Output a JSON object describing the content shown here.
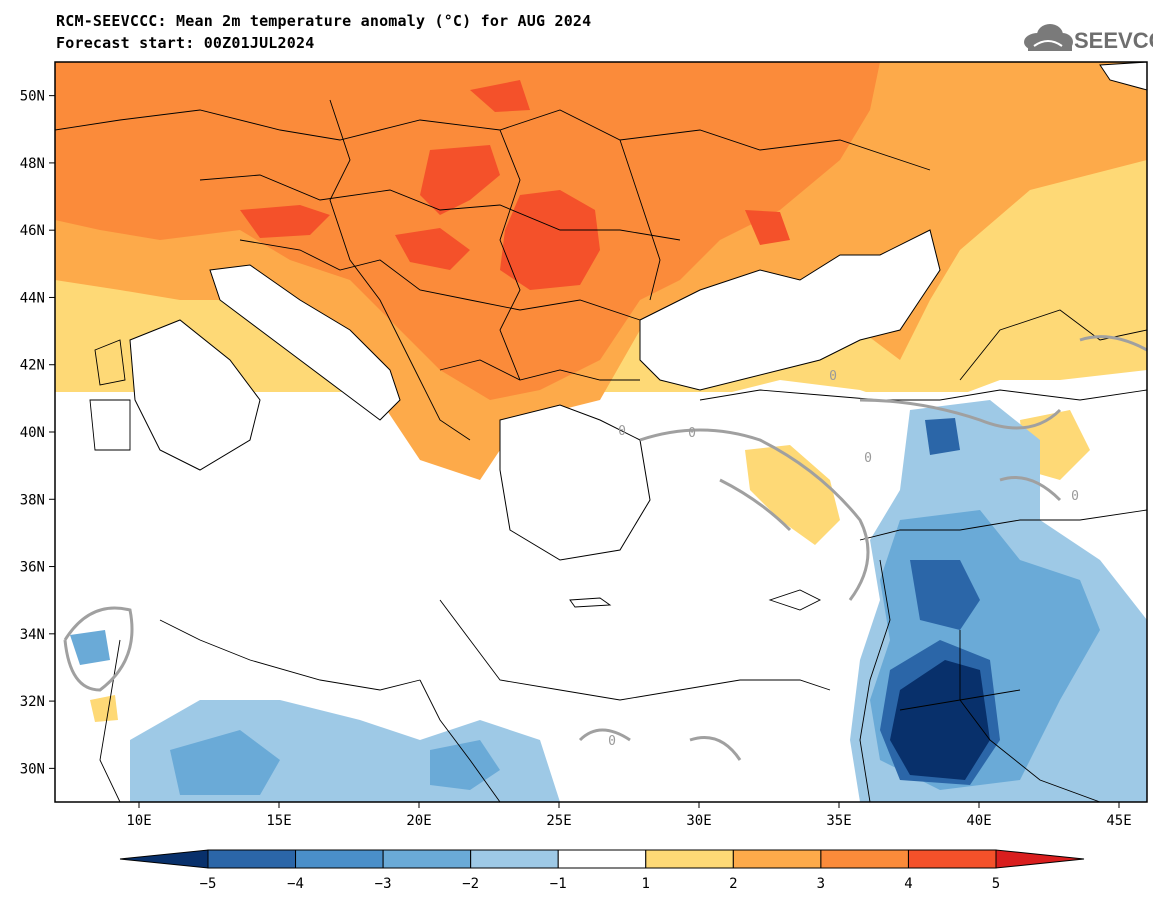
{
  "header": {
    "title": "RCM-SEEVCCC: Mean 2m temperature anomaly (°C) for AUG 2024",
    "subtitle": "Forecast start: 00Z01JUL2024",
    "logo_text": "SEEVCCC"
  },
  "map": {
    "lat_labels": [
      {
        "deg": 50,
        "text": "50N"
      },
      {
        "deg": 48,
        "text": "48N"
      },
      {
        "deg": 46,
        "text": "46N"
      },
      {
        "deg": 44,
        "text": "44N"
      },
      {
        "deg": 42,
        "text": "42N"
      },
      {
        "deg": 40,
        "text": "40N"
      },
      {
        "deg": 38,
        "text": "38N"
      },
      {
        "deg": 36,
        "text": "36N"
      },
      {
        "deg": 34,
        "text": "34N"
      },
      {
        "deg": 32,
        "text": "32N"
      },
      {
        "deg": 30,
        "text": "30N"
      }
    ],
    "lon_labels": [
      {
        "deg": 10,
        "text": "10E"
      },
      {
        "deg": 15,
        "text": "15E"
      },
      {
        "deg": 20,
        "text": "20E"
      },
      {
        "deg": 25,
        "text": "25E"
      },
      {
        "deg": 30,
        "text": "30E"
      },
      {
        "deg": 35,
        "text": "35E"
      },
      {
        "deg": 40,
        "text": "40E"
      },
      {
        "deg": 45,
        "text": "45E"
      }
    ],
    "contour_label": "0"
  },
  "colorbar": {
    "levels": [
      "−5",
      "−4",
      "−3",
      "−2",
      "−1",
      "1",
      "2",
      "3",
      "4",
      "5"
    ],
    "colors": [
      "#08306b",
      "#2b66a8",
      "#4a8fc9",
      "#6aaad7",
      "#9ec9e6",
      "#ffffff",
      "#fed976",
      "#fdaa4a",
      "#fb8b3a",
      "#f4512a",
      "#d91e1e"
    ]
  },
  "colors": {
    "orange_light": "#fed976",
    "orange_mid": "#fdaa4a",
    "orange_dark": "#fb8b3a",
    "red": "#f4512a",
    "blue_light": "#9ec9e6",
    "blue_mid": "#6aaad7",
    "blue_dark": "#2b66a8",
    "blue_darkest": "#08306b",
    "contour_grey": "#9e9e9e"
  }
}
